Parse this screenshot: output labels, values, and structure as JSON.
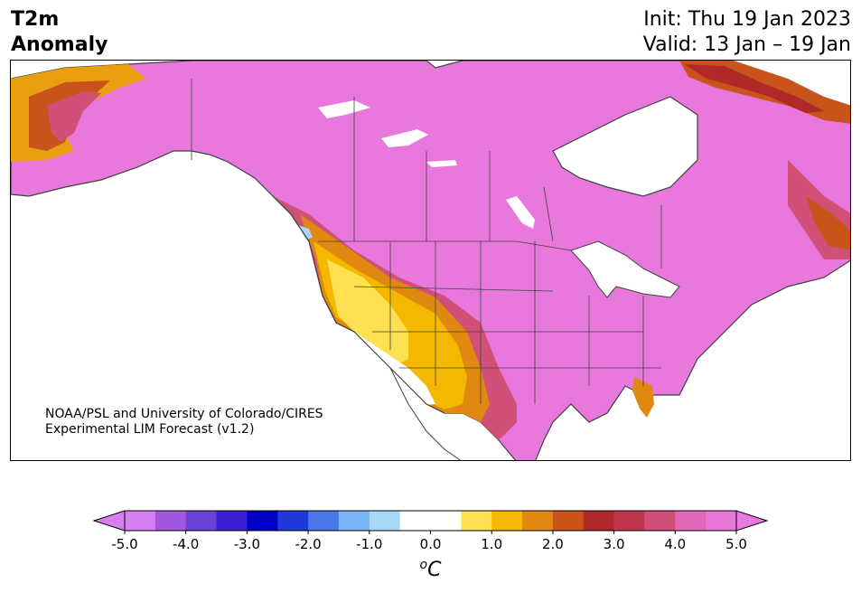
{
  "header": {
    "title_line1": "T2m",
    "title_line2": "Anomaly",
    "init_text": "Init: Thu 19 Jan 2023",
    "valid_text": "Valid: 13 Jan – 19 Jan"
  },
  "map": {
    "credit_line1": "NOAA/PSL and University of Colorado/CIRES",
    "credit_line2": "Experimental LIM Forecast (v1.2)",
    "land_outline_color": "#404040",
    "water_color": "#ffffff"
  },
  "colorbar": {
    "unit_label": "oC",
    "ticks": [
      "-5.0",
      "-4.0",
      "-3.0",
      "-2.0",
      "-1.0",
      "0.0",
      "1.0",
      "2.0",
      "3.0",
      "4.0",
      "5.0"
    ],
    "tick_values": [
      -5,
      -4,
      -3,
      -2,
      -1,
      0,
      1,
      2,
      3,
      4,
      5
    ],
    "range": [
      -5,
      5
    ],
    "extend": "both",
    "under_color": "#d77ef0",
    "over_color": "#e879e0",
    "colors": [
      "#d77ef0",
      "#a058e0",
      "#6a40d8",
      "#3a20d0",
      "#0000c8",
      "#2038d8",
      "#4a78e8",
      "#78b4f4",
      "#a8d8f8",
      "#ffffff",
      "#ffffff",
      "#ffe050",
      "#f4b800",
      "#e08810",
      "#c85418",
      "#b02828",
      "#c03850",
      "#d05078",
      "#e068b8",
      "#e878d8"
    ]
  }
}
